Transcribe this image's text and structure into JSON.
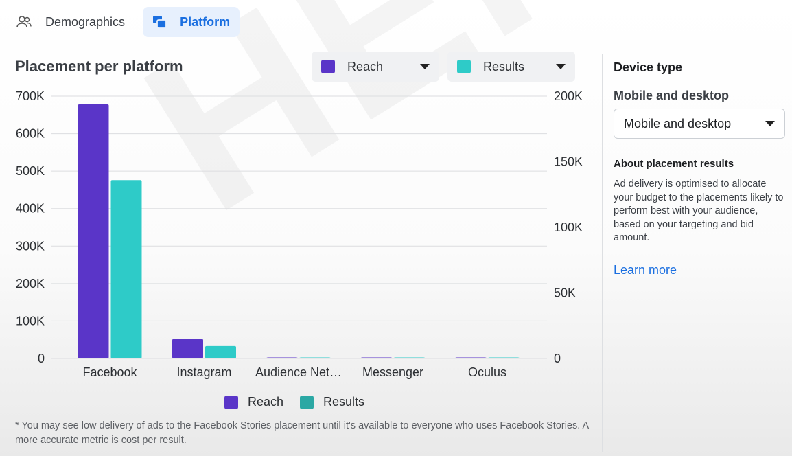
{
  "tabs": [
    {
      "label": "Demographics",
      "icon": "people-icon",
      "active": false
    },
    {
      "label": "Platform",
      "icon": "platform-icon",
      "active": true
    }
  ],
  "chart_header": {
    "title": "Placement per platform",
    "metric_left": {
      "label": "Reach",
      "color": "#5a35c8"
    },
    "metric_right": {
      "label": "Results",
      "color": "#2ecbc8"
    }
  },
  "chart_data": {
    "type": "bar",
    "categories": [
      "Facebook",
      "Instagram",
      "Audience Net…",
      "Messenger",
      "Oculus"
    ],
    "series": [
      {
        "name": "Reach",
        "axis": "left",
        "color": "#5a35c8",
        "values": [
          678000,
          52000,
          500,
          300,
          200
        ]
      },
      {
        "name": "Results",
        "axis": "right",
        "color": "#2ecbc8",
        "values": [
          136000,
          9500,
          200,
          100,
          50
        ]
      }
    ],
    "left_ticks": [
      "0",
      "100K",
      "200K",
      "300K",
      "400K",
      "500K",
      "600K",
      "700K"
    ],
    "right_ticks": [
      "0",
      "50K",
      "100K",
      "150K",
      "200K"
    ],
    "ylim_left": [
      0,
      700000
    ],
    "ylim_right": [
      0,
      200000
    ],
    "grid": true,
    "legend_position": "bottom"
  },
  "legend": [
    {
      "label": "Reach",
      "color": "#5a35c8"
    },
    {
      "label": "Results",
      "color": "#2ecbc8"
    }
  ],
  "footnote": "* You may see low delivery of ads to the Facebook Stories placement until it's available to everyone who uses Facebook Stories. A more accurate metric is cost per result.",
  "panel": {
    "title": "Device type",
    "device_label": "Mobile and desktop",
    "device_value": "Mobile and desktop",
    "about_title": "About placement results",
    "about_text": "Ad delivery is optimised to allocate your budget to the placements likely to perform best with your audience, based on your targeting and bid amount.",
    "learn_more": "Learn more"
  },
  "watermark": "HERA"
}
